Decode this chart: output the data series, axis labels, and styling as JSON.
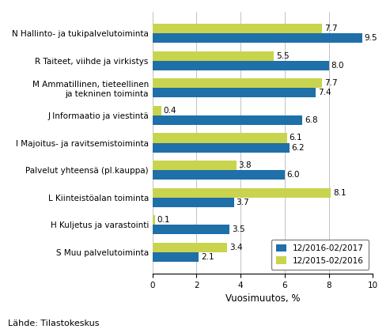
{
  "categories": [
    "N Hallinto- ja tukipalvelutoiminta",
    "R Taiteet, viihde ja virkistys",
    "M Ammatillinen, tieteellinen\nja tekninen toiminta",
    "J Informaatio ja viestintä",
    "I Majoitus- ja ravitsemistoiminta",
    "Palvelut yhteensä (pl.kauppa)",
    "L Kiinteistöalan toiminta",
    "H Kuljetus ja varastointi",
    "S Muu palvelutoiminta"
  ],
  "series1_label": "12/2016-02/2017",
  "series2_label": "12/2015-02/2016",
  "series1_values": [
    9.5,
    8.0,
    7.4,
    6.8,
    6.2,
    6.0,
    3.7,
    3.5,
    2.1
  ],
  "series2_values": [
    7.7,
    5.5,
    7.7,
    0.4,
    6.1,
    3.8,
    8.1,
    0.1,
    3.4
  ],
  "color1": "#1f6fa8",
  "color2": "#c8d44e",
  "xlim": [
    0,
    10
  ],
  "xticks": [
    0,
    2,
    4,
    6,
    8,
    10
  ],
  "xlabel": "Vuosimuutos, %",
  "source": "Lähde: Tilastokeskus",
  "bar_height": 0.35,
  "label_fontsize": 7.5,
  "tick_fontsize": 7.5,
  "xlabel_fontsize": 8.5,
  "legend_fontsize": 7.5,
  "source_fontsize": 8
}
